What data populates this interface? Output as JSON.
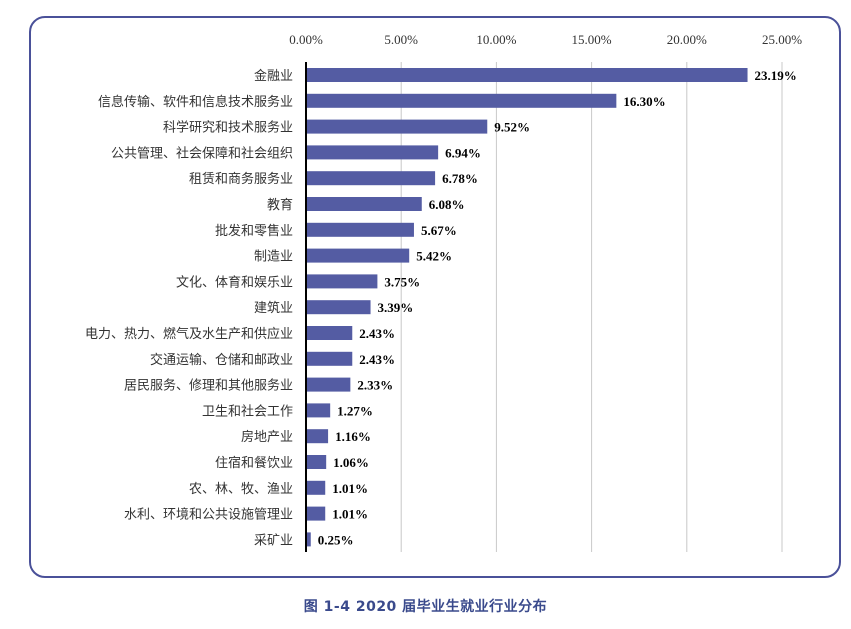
{
  "colors": {
    "bar": "#545ca3",
    "frame": "#4a5199",
    "caption": "#3a4a8c",
    "grid": "#c8c8c8",
    "axis": "#000000",
    "text": "#333333",
    "value_label": "#000000"
  },
  "caption": "图 1-4    2020 届毕业生就业行业分布",
  "chart_data": {
    "type": "bar",
    "orientation": "horizontal",
    "title": "",
    "xlabel": "",
    "ylabel": "",
    "xlim": [
      0,
      25
    ],
    "x_ticks": [
      "0.00%",
      "5.00%",
      "10.00%",
      "15.00%",
      "20.00%",
      "25.00%"
    ],
    "x_tick_values": [
      0,
      5,
      10,
      15,
      20,
      25
    ],
    "x_axis_position": "top",
    "grid": true,
    "legend": "none",
    "categories": [
      "金融业",
      "信息传输、软件和信息技术服务业",
      "科学研究和技术服务业",
      "公共管理、社会保障和社会组织",
      "租赁和商务服务业",
      "教育",
      "批发和零售业",
      "制造业",
      "文化、体育和娱乐业",
      "建筑业",
      "电力、热力、燃气及水生产和供应业",
      "交通运输、仓储和邮政业",
      "居民服务、修理和其他服务业",
      "卫生和社会工作",
      "房地产业",
      "住宿和餐饮业",
      "农、林、牧、渔业",
      "水利、环境和公共设施管理业",
      "采矿业"
    ],
    "values": [
      23.19,
      16.3,
      9.52,
      6.94,
      6.78,
      6.08,
      5.67,
      5.42,
      3.75,
      3.39,
      2.43,
      2.43,
      2.33,
      1.27,
      1.16,
      1.06,
      1.01,
      1.01,
      0.25
    ],
    "value_labels": [
      "23.19%",
      "16.30%",
      "9.52%",
      "6.94%",
      "6.78%",
      "6.08%",
      "5.67%",
      "5.42%",
      "3.75%",
      "3.39%",
      "2.43%",
      "2.43%",
      "2.33%",
      "1.27%",
      "1.16%",
      "1.06%",
      "1.01%",
      "1.01%",
      "0.25%"
    ]
  }
}
